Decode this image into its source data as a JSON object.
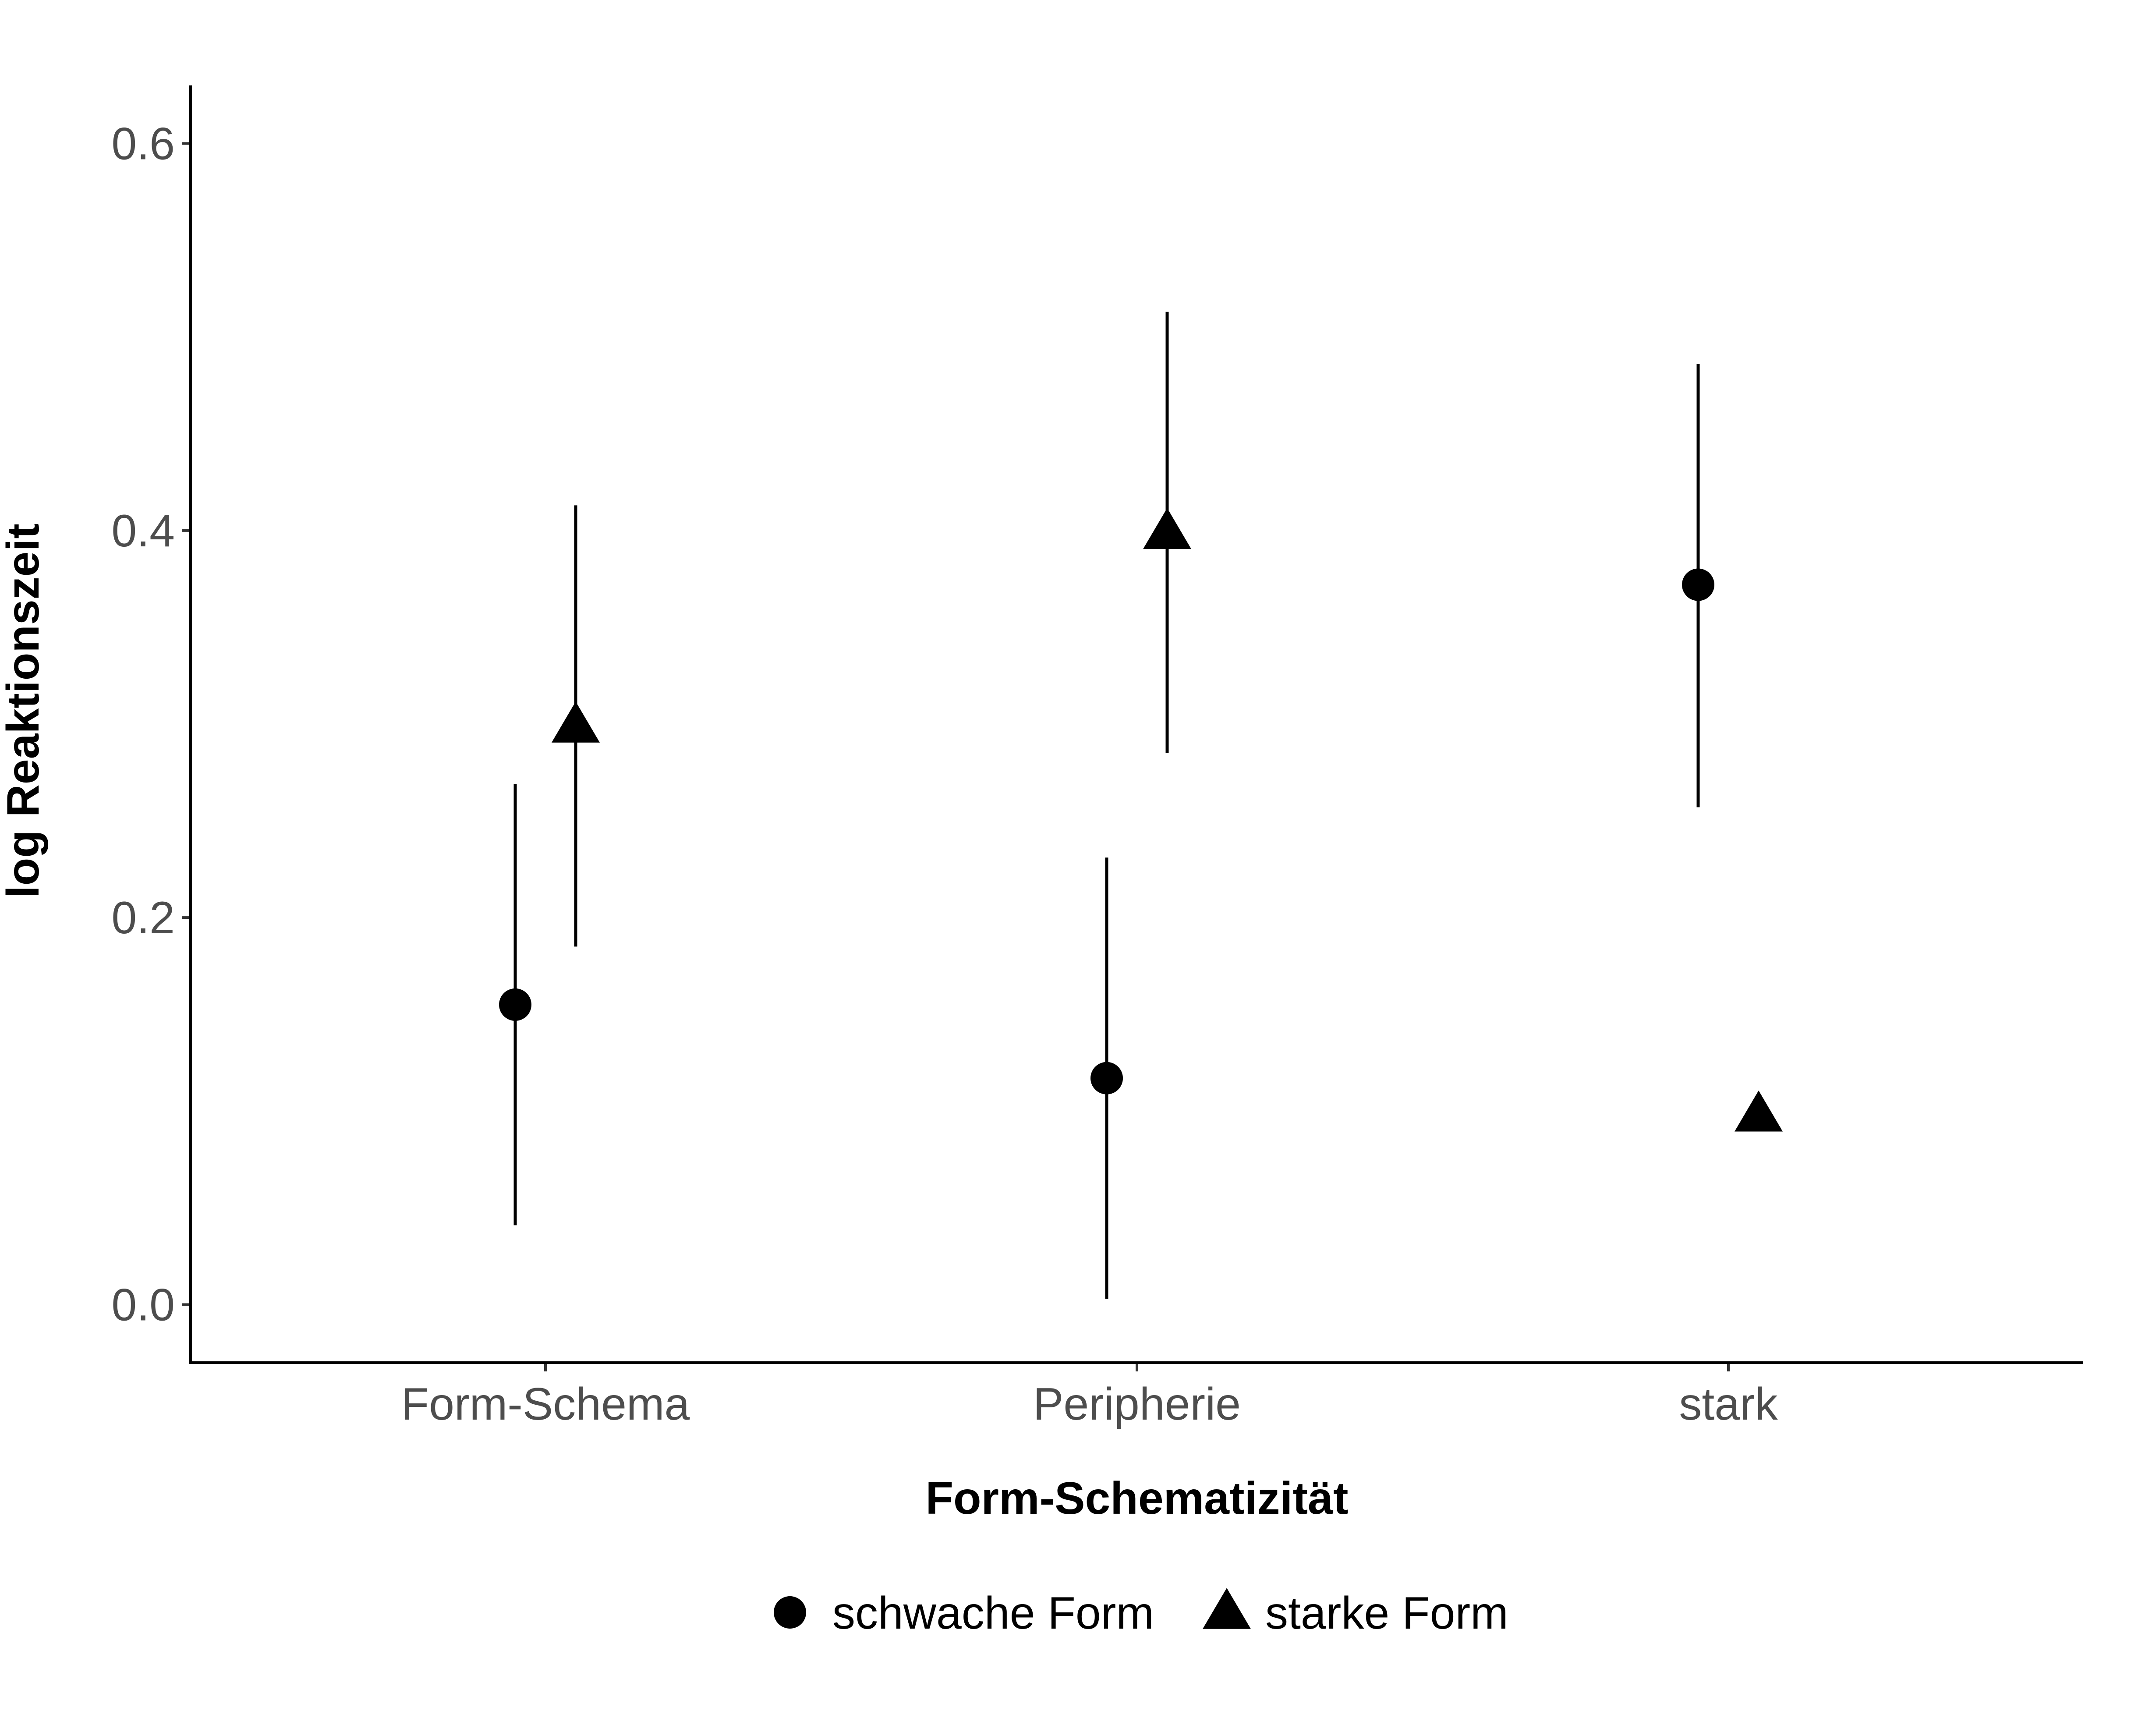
{
  "chart_data": {
    "type": "scatter",
    "xlabel": "Form-Schematizität",
    "ylabel": "log Reaktionszeit",
    "categories": [
      "Form-Schema",
      "Peripherie",
      "stark"
    ],
    "yticks": [
      "0.0",
      "0.2",
      "0.4",
      "0.6"
    ],
    "ylim": [
      -0.03,
      0.63
    ],
    "grid": false,
    "legend_position": "bottom",
    "series": [
      {
        "name": "schwache Form",
        "shape": "circle",
        "color": "#000000",
        "points": [
          {
            "category": "Form-Schema",
            "y": 0.155,
            "lower": 0.041,
            "upper": 0.269
          },
          {
            "category": "Peripherie",
            "y": 0.117,
            "lower": 0.003,
            "upper": 0.231
          },
          {
            "category": "stark",
            "y": 0.372,
            "lower": 0.257,
            "upper": 0.486
          }
        ]
      },
      {
        "name": "starke Form",
        "shape": "triangle",
        "color": "#000000",
        "points": [
          {
            "category": "Form-Schema",
            "y": 0.299,
            "lower": 0.185,
            "upper": 0.413
          },
          {
            "category": "Peripherie",
            "y": 0.399,
            "lower": 0.285,
            "upper": 0.513
          },
          {
            "category": "stark",
            "y": 0.098,
            "lower": null,
            "upper": null
          }
        ]
      }
    ]
  }
}
